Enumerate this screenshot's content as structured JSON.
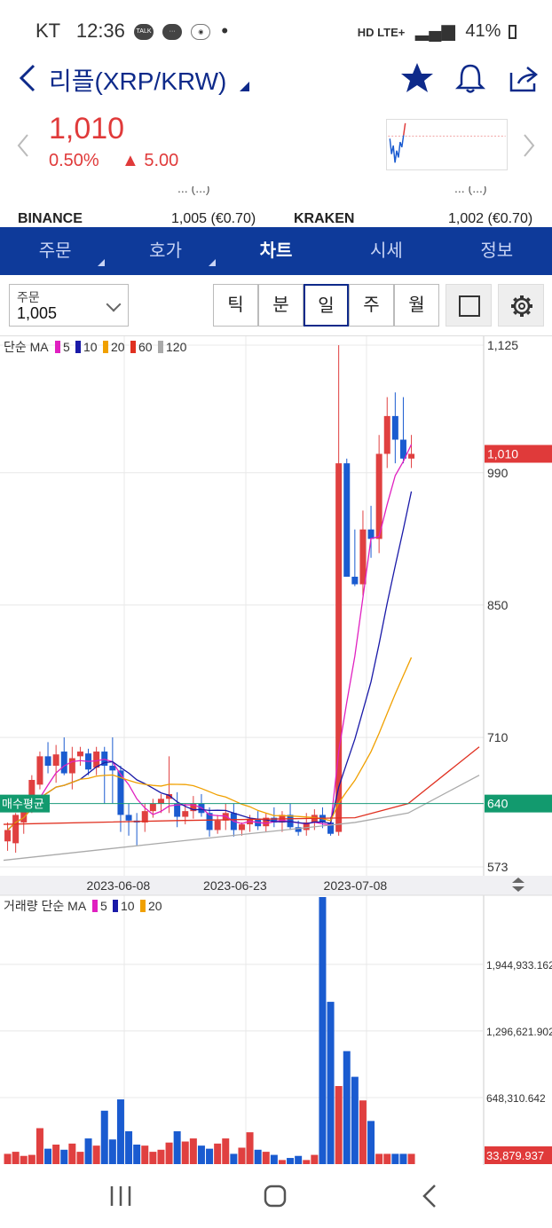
{
  "status": {
    "carrier": "KT",
    "time": "12:36",
    "indicators": [
      "TALK",
      "chat",
      "map",
      "•"
    ],
    "network": "HD LTE+",
    "battery": "41%"
  },
  "header": {
    "title": "리플(XRP/KRW)"
  },
  "price": {
    "current": "1,010",
    "change_pct": "0.50%",
    "change_abs": "▲ 5.00",
    "color_up": "#e03a3a"
  },
  "exchanges": {
    "row_cut_left": "... (...)",
    "row_cut_right": "... (...)",
    "items": [
      {
        "name": "BINANCE",
        "value": "1,005 (€0.70)"
      },
      {
        "name": "KRAKEN",
        "value": "1,002 (€0.70)"
      }
    ]
  },
  "tabs": [
    {
      "label": "주문",
      "active": false,
      "has_corner": true
    },
    {
      "label": "호가",
      "active": false,
      "has_corner": true
    },
    {
      "label": "차트",
      "active": true,
      "has_corner": false
    },
    {
      "label": "시세",
      "active": false,
      "has_corner": false
    },
    {
      "label": "정보",
      "active": false,
      "has_corner": false
    }
  ],
  "toolbar": {
    "order_label": "주문",
    "order_value": "1,005",
    "periods": [
      "틱",
      "분",
      "일",
      "주",
      "월"
    ],
    "selected_period": "일"
  },
  "chart_data": [
    {
      "type": "candlestick",
      "legend_prefix": "단순 MA",
      "ma_legend": [
        {
          "label": "5",
          "color": "#e020c0"
        },
        {
          "label": "10",
          "color": "#1a1aa8"
        },
        {
          "label": "20",
          "color": "#f0a000"
        },
        {
          "label": "60",
          "color": "#e03020"
        },
        {
          "label": "120",
          "color": "#aaaaaa"
        }
      ],
      "y_ticks": [
        "1,125",
        "990",
        "850",
        "710",
        "573"
      ],
      "y_tick_values": [
        1125,
        990,
        850,
        710,
        573
      ],
      "ylim": [
        573,
        1125
      ],
      "current_price_label": "1,010",
      "current_price_value": 1010,
      "avg_buy_label": "매수평균",
      "avg_buy_value_label": "640",
      "avg_buy_value": 640,
      "x_labels": [
        "2023-06-08",
        "2023-06-23",
        "2023-07-08"
      ],
      "x_label_index": [
        7,
        17,
        27
      ],
      "candles": [
        {
          "o": 600,
          "h": 620,
          "l": 590,
          "c": 612
        },
        {
          "o": 598,
          "h": 630,
          "l": 588,
          "c": 628
        },
        {
          "o": 620,
          "h": 640,
          "l": 608,
          "c": 635
        },
        {
          "o": 640,
          "h": 670,
          "l": 630,
          "c": 665
        },
        {
          "o": 660,
          "h": 695,
          "l": 655,
          "c": 690
        },
        {
          "o": 690,
          "h": 705,
          "l": 672,
          "c": 680
        },
        {
          "o": 680,
          "h": 702,
          "l": 662,
          "c": 692
        },
        {
          "o": 695,
          "h": 710,
          "l": 670,
          "c": 672
        },
        {
          "o": 672,
          "h": 700,
          "l": 655,
          "c": 688
        },
        {
          "o": 690,
          "h": 700,
          "l": 680,
          "c": 695
        },
        {
          "o": 693,
          "h": 698,
          "l": 670,
          "c": 676
        },
        {
          "o": 678,
          "h": 700,
          "l": 670,
          "c": 695
        },
        {
          "o": 695,
          "h": 700,
          "l": 640,
          "c": 680
        },
        {
          "o": 680,
          "h": 710,
          "l": 640,
          "c": 675
        },
        {
          "o": 675,
          "h": 680,
          "l": 610,
          "c": 628
        },
        {
          "o": 628,
          "h": 640,
          "l": 606,
          "c": 622
        },
        {
          "o": 622,
          "h": 630,
          "l": 596,
          "c": 620
        },
        {
          "o": 620,
          "h": 640,
          "l": 610,
          "c": 632
        },
        {
          "o": 632,
          "h": 645,
          "l": 625,
          "c": 640
        },
        {
          "o": 640,
          "h": 650,
          "l": 630,
          "c": 645
        },
        {
          "o": 645,
          "h": 690,
          "l": 630,
          "c": 650
        }
      ],
      "ma_note": "continuation"
    },
    {
      "type": "bar",
      "legend_prefix": "거래량 단순 MA",
      "ma_legend": [
        {
          "label": "5",
          "color": "#e020c0"
        },
        {
          "label": "10",
          "color": "#1a1aa8"
        },
        {
          "label": "20",
          "color": "#f0a000"
        }
      ],
      "y_ticks": [
        "1,944,933.162",
        "1,296,621.902",
        "648,310.642"
      ],
      "y_tick_values": [
        1944933.162,
        1296621.902,
        648310.642
      ],
      "last_value_label": "33,879.937",
      "ylim": [
        0,
        2600000
      ]
    }
  ],
  "navbar": {
    "buttons": [
      "recent-apps",
      "home",
      "back"
    ]
  }
}
